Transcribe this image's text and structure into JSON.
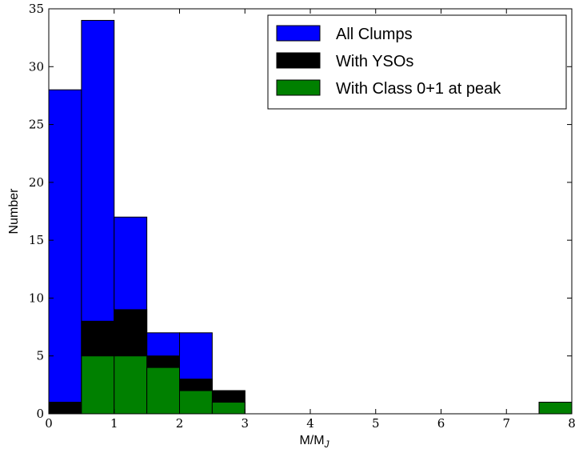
{
  "chart_data": {
    "type": "bar",
    "bin_edges": [
      0,
      0.5,
      1,
      1.5,
      2,
      2.5,
      3,
      3.5,
      4,
      4.5,
      5,
      5.5,
      6,
      6.5,
      7,
      7.5,
      8
    ],
    "series": [
      {
        "name": "All Clumps",
        "color": "#0000ff",
        "values": [
          28,
          34,
          17,
          7,
          7,
          2,
          0,
          0,
          0,
          0,
          0,
          0,
          0,
          0,
          0,
          1
        ]
      },
      {
        "name": "With YSOs",
        "color": "#000000",
        "values": [
          1,
          8,
          9,
          5,
          3,
          2,
          0,
          0,
          0,
          0,
          0,
          0,
          0,
          0,
          0,
          1
        ]
      },
      {
        "name": "With Class 0+1 at peak",
        "color": "#008000",
        "values": [
          0,
          5,
          5,
          4,
          2,
          1,
          0,
          0,
          0,
          0,
          0,
          0,
          0,
          0,
          0,
          1
        ]
      }
    ],
    "xlabel_main": "M/M",
    "xlabel_sub": "J",
    "ylabel": "Number",
    "xlim": [
      0,
      8
    ],
    "ylim": [
      0,
      35
    ],
    "xticks": [
      0,
      1,
      2,
      3,
      4,
      5,
      6,
      7,
      8
    ],
    "yticks": [
      0,
      5,
      10,
      15,
      20,
      25,
      30,
      35
    ],
    "legend_position": "top-right",
    "grid": false
  }
}
